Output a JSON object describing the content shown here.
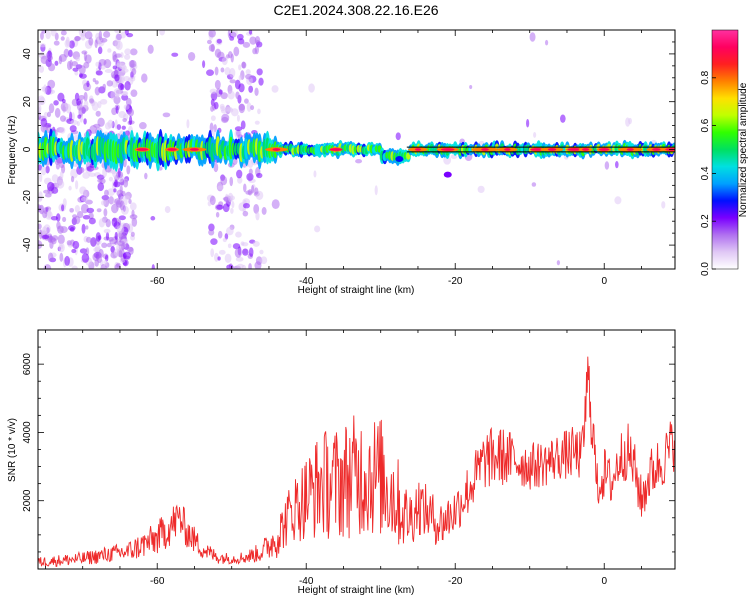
{
  "title": "C2E1.2024.308.22.16.E26",
  "chart_data": [
    {
      "type": "heatmap",
      "xlabel": "Height of straight line (km)",
      "ylabel": "Frequency (Hz)",
      "xlim": [
        -76,
        9.5
      ],
      "ylim": [
        -50,
        50
      ],
      "xticks": [
        -60,
        -40,
        -20,
        0
      ],
      "yticks": [
        -40,
        -20,
        0,
        20,
        40
      ],
      "colorbar": {
        "label": "Normalized spectral amplitude",
        "range": [
          0,
          1
        ],
        "ticks": [
          0.0,
          0.2,
          0.4,
          0.6,
          0.8
        ],
        "tick_labels": [
          "0.0",
          "0.2",
          "0.4",
          "0.6",
          "0.8"
        ],
        "colors": [
          "#ffffff",
          "#e0c8f5",
          "#b070f0",
          "#7a00ff",
          "#0010ff",
          "#00a0ff",
          "#00e0e0",
          "#00e060",
          "#30ff00",
          "#c0ff00",
          "#ffe000",
          "#ff8000",
          "#ff2020",
          "#ff0060",
          "#ff30a0"
        ]
      },
      "ridge_line_hz": [
        1,
        -1
      ]
    },
    {
      "type": "line",
      "xlabel": "Height of straight line (km)",
      "ylabel": "SNR (10 * v/v)",
      "xlim": [
        -76,
        9.5
      ],
      "ylim": [
        0,
        7000
      ],
      "xticks": [
        -60,
        -40,
        -20,
        0
      ],
      "yticks": [
        2000,
        4000,
        6000
      ],
      "series": [
        {
          "color": "#ee2a2a",
          "envelope": {
            "x": [
              -76,
              -70,
              -66,
              -64,
              -62,
              -60,
              -58,
              -57,
              -56,
              -54,
              -52,
              -50,
              -48,
              -46,
              -44,
              -42,
              -40,
              -38,
              -36,
              -34,
              -32,
              -30,
              -28,
              -27,
              -26,
              -25,
              -24,
              -22,
              -20,
              -18,
              -16,
              -14,
              -12,
              -10,
              -8,
              -6,
              -4,
              -3,
              -2.2,
              -1.5,
              -1,
              0,
              1,
              2,
              3,
              4,
              5,
              6,
              7,
              8,
              9.5
            ],
            "mean": [
              200,
              300,
              450,
              500,
              700,
              900,
              1300,
              1500,
              1100,
              600,
              350,
              300,
              350,
              500,
              900,
              1700,
              2100,
              2500,
              2500,
              2700,
              2800,
              2700,
              2100,
              1600,
              1500,
              1900,
              1700,
              1300,
              1700,
              2400,
              3200,
              3300,
              3200,
              3000,
              3100,
              3300,
              3400,
              3300,
              5500,
              4100,
              2400,
              2800,
              2500,
              3200,
              3500,
              3000,
              2000,
              2700,
              3000,
              3200,
              3800
            ],
            "amp": [
              150,
              200,
              250,
              300,
              400,
              500,
              600,
              600,
              500,
              300,
              200,
              150,
              200,
              300,
              600,
              900,
              1300,
              1600,
              1700,
              1800,
              1900,
              1800,
              1500,
              1000,
              900,
              900,
              800,
              700,
              700,
              800,
              900,
              900,
              800,
              700,
              700,
              700,
              800,
              700,
              1200,
              900,
              700,
              800,
              700,
              800,
              900,
              800,
              700,
              800,
              800,
              800,
              900
            ]
          }
        }
      ]
    }
  ]
}
